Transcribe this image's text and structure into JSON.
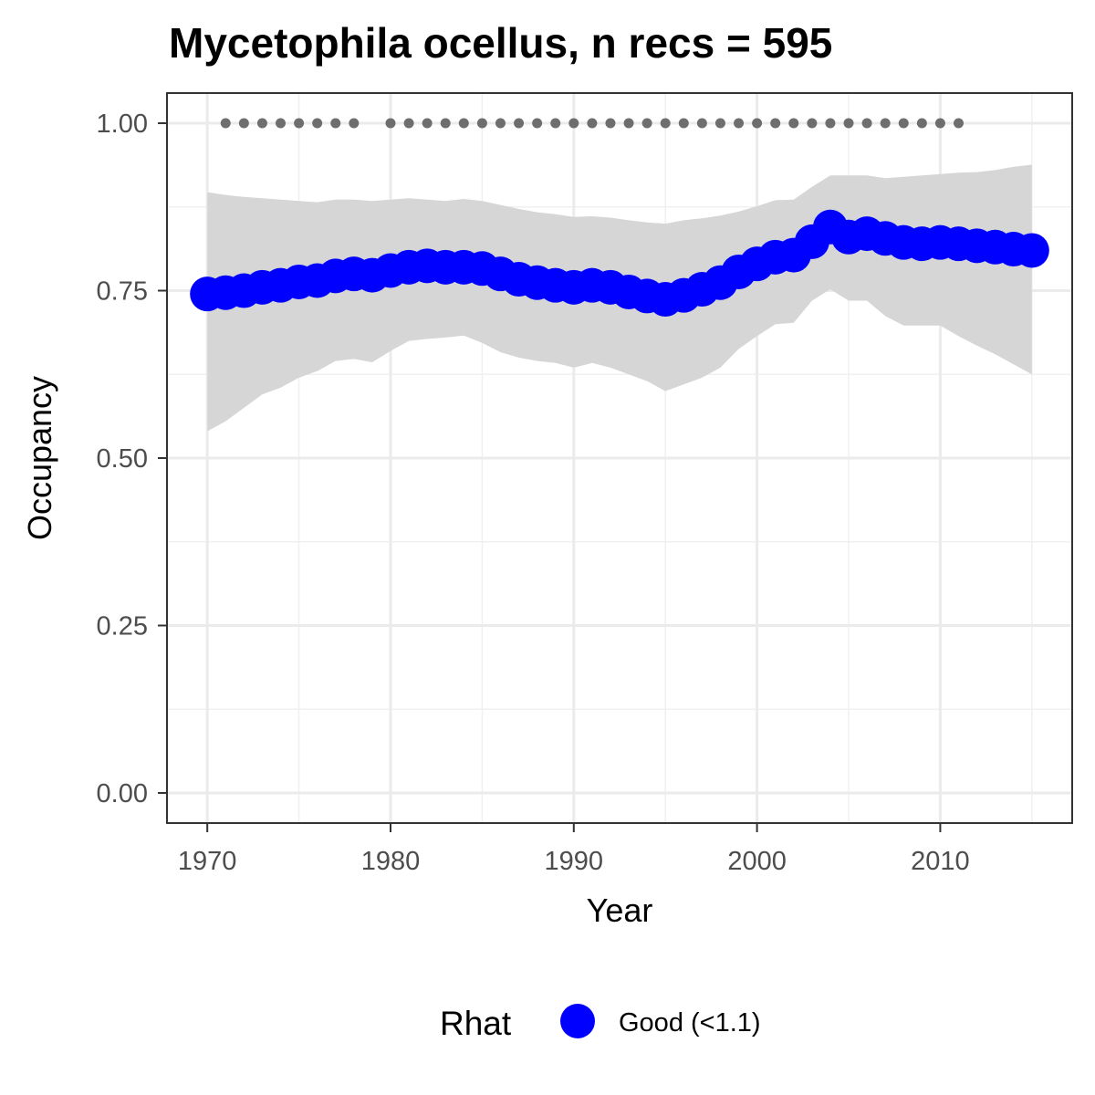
{
  "chart_data": {
    "type": "line",
    "title": "Mycetophila ocellus, n recs = 595",
    "xlabel": "Year",
    "ylabel": "Occupancy",
    "xlim": [
      1967.8,
      2017.2
    ],
    "ylim": [
      -0.045,
      1.045
    ],
    "x_ticks": [
      1970,
      1980,
      1990,
      2000,
      2010
    ],
    "y_ticks": [
      0.0,
      0.25,
      0.5,
      0.75,
      1.0
    ],
    "x_tick_labels": [
      "1970",
      "1980",
      "1990",
      "2000",
      "2010"
    ],
    "y_tick_labels": [
      "0.00",
      "0.25",
      "0.50",
      "0.75",
      "1.00"
    ],
    "grid": true,
    "legend": {
      "title": "Rhat",
      "position": "bottom",
      "entries": [
        {
          "label": "Good (<1.1)",
          "color": "#0000ff"
        }
      ]
    },
    "colors": {
      "series": "#0000ff",
      "ribbon": "#d6d6d6",
      "records": "#6e6e6e"
    },
    "series": [
      {
        "x": [
          1970,
          1971,
          1972,
          1973,
          1974,
          1975,
          1976,
          1977,
          1978,
          1979,
          1980,
          1981,
          1982,
          1983,
          1984,
          1985,
          1986,
          1987,
          1988,
          1989,
          1990,
          1991,
          1992,
          1993,
          1994,
          1995,
          1996,
          1997,
          1998,
          1999,
          2000,
          2001,
          2002,
          2003,
          2004,
          2005,
          2006,
          2007,
          2008,
          2009,
          2010,
          2011,
          2012,
          2013,
          2014,
          2015
        ],
        "values": [
          0.745,
          0.747,
          0.75,
          0.755,
          0.758,
          0.763,
          0.765,
          0.772,
          0.775,
          0.773,
          0.78,
          0.785,
          0.787,
          0.785,
          0.785,
          0.783,
          0.775,
          0.767,
          0.762,
          0.758,
          0.755,
          0.758,
          0.755,
          0.748,
          0.742,
          0.737,
          0.743,
          0.752,
          0.762,
          0.778,
          0.79,
          0.8,
          0.803,
          0.823,
          0.845,
          0.83,
          0.835,
          0.828,
          0.822,
          0.82,
          0.822,
          0.82,
          0.817,
          0.815,
          0.812,
          0.81
        ],
        "lower": [
          0.54,
          0.555,
          0.575,
          0.595,
          0.605,
          0.62,
          0.63,
          0.645,
          0.648,
          0.643,
          0.66,
          0.675,
          0.678,
          0.68,
          0.683,
          0.672,
          0.658,
          0.65,
          0.645,
          0.642,
          0.635,
          0.642,
          0.635,
          0.625,
          0.615,
          0.6,
          0.61,
          0.62,
          0.635,
          0.663,
          0.682,
          0.7,
          0.702,
          0.735,
          0.752,
          0.735,
          0.735,
          0.712,
          0.698,
          0.698,
          0.698,
          0.682,
          0.668,
          0.655,
          0.64,
          0.625
        ],
        "upper": [
          0.897,
          0.893,
          0.89,
          0.888,
          0.886,
          0.884,
          0.882,
          0.886,
          0.886,
          0.884,
          0.886,
          0.888,
          0.886,
          0.884,
          0.887,
          0.884,
          0.878,
          0.872,
          0.867,
          0.864,
          0.86,
          0.861,
          0.859,
          0.855,
          0.852,
          0.85,
          0.855,
          0.858,
          0.862,
          0.868,
          0.876,
          0.885,
          0.886,
          0.905,
          0.922,
          0.922,
          0.922,
          0.918,
          0.92,
          0.922,
          0.924,
          0.926,
          0.927,
          0.93,
          0.935,
          0.938
        ]
      }
    ],
    "records": {
      "y": 1.0,
      "years": [
        1971,
        1972,
        1973,
        1974,
        1975,
        1976,
        1977,
        1978,
        1980,
        1981,
        1982,
        1983,
        1984,
        1985,
        1986,
        1987,
        1988,
        1989,
        1990,
        1991,
        1992,
        1993,
        1994,
        1995,
        1996,
        1997,
        1998,
        1999,
        2000,
        2001,
        2002,
        2003,
        2004,
        2005,
        2006,
        2007,
        2008,
        2009,
        2010,
        2011
      ]
    }
  }
}
